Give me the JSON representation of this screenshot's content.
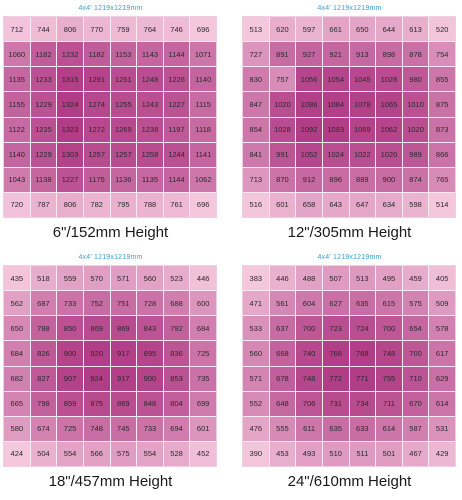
{
  "panels": [
    {
      "size_label": "4x4'  1219x1219mm",
      "caption": "6\"/152mm Height",
      "grid": [
        [
          712,
          744,
          806,
          770,
          759,
          764,
          746,
          696
        ],
        [
          1060,
          1182,
          1232,
          1182,
          1153,
          1143,
          1144,
          1071
        ],
        [
          1135,
          1233,
          1315,
          1291,
          1251,
          1248,
          1226,
          1140
        ],
        [
          1155,
          1229,
          1324,
          1274,
          1255,
          1243,
          1227,
          1115
        ],
        [
          1122,
          1235,
          1323,
          1272,
          1269,
          1238,
          1197,
          1118
        ],
        [
          1140,
          1229,
          1303,
          1257,
          1257,
          1258,
          1244,
          1141
        ],
        [
          1043,
          1138,
          1227,
          1175,
          1136,
          1135,
          1144,
          1062
        ],
        [
          720,
          787,
          806,
          782,
          795,
          788,
          761,
          696
        ]
      ]
    },
    {
      "size_label": "4x4'  1219x1219mm",
      "caption": "12\"/305mm Height",
      "grid": [
        [
          513,
          620,
          597,
          661,
          650,
          644,
          613,
          520
        ],
        [
          727,
          891,
          927,
          921,
          913,
          898,
          878,
          754
        ],
        [
          830,
          757,
          1056,
          1054,
          1045,
          1028,
          980,
          855
        ],
        [
          847,
          1020,
          1086,
          1084,
          1078,
          1065,
          1010,
          875
        ],
        [
          854,
          1028,
          1092,
          1093,
          1069,
          1062,
          1020,
          873
        ],
        [
          841,
          991,
          1052,
          1024,
          1022,
          1020,
          989,
          866
        ],
        [
          713,
          870,
          912,
          896,
          889,
          900,
          874,
          765
        ],
        [
          516,
          601,
          658,
          643,
          647,
          634,
          598,
          514
        ]
      ]
    },
    {
      "size_label": "4x4'  1219x1219mm",
      "caption": "18\"/457mm Height",
      "grid": [
        [
          435,
          518,
          559,
          570,
          571,
          560,
          523,
          446
        ],
        [
          562,
          687,
          733,
          752,
          751,
          728,
          688,
          600
        ],
        [
          650,
          788,
          850,
          869,
          869,
          843,
          792,
          684
        ],
        [
          684,
          826,
          900,
          920,
          917,
          895,
          836,
          725
        ],
        [
          682,
          827,
          907,
          924,
          917,
          900,
          853,
          735
        ],
        [
          665,
          798,
          859,
          875,
          869,
          848,
          804,
          699
        ],
        [
          580,
          674,
          725,
          748,
          745,
          733,
          694,
          601
        ],
        [
          424,
          504,
          554,
          566,
          575,
          554,
          528,
          452
        ]
      ]
    },
    {
      "size_label": "4x4'  1219x1219mm",
      "caption": "24\"/610mm Height",
      "grid": [
        [
          383,
          446,
          488,
          507,
          513,
          495,
          459,
          405
        ],
        [
          471,
          561,
          604,
          627,
          635,
          615,
          575,
          509
        ],
        [
          533,
          637,
          700,
          723,
          724,
          700,
          654,
          578
        ],
        [
          560,
          668,
          740,
          768,
          768,
          748,
          700,
          617
        ],
        [
          571,
          678,
          748,
          772,
          771,
          755,
          710,
          629
        ],
        [
          552,
          648,
          706,
          731,
          734,
          711,
          670,
          614
        ],
        [
          476,
          555,
          611,
          635,
          633,
          614,
          587,
          531
        ],
        [
          390,
          453,
          493,
          510,
          511,
          501,
          467,
          429
        ]
      ]
    }
  ],
  "colors": {
    "cell_min": "#f4c7dc",
    "cell_max": "#b13d86",
    "label_blue": "#3b9fd6"
  }
}
